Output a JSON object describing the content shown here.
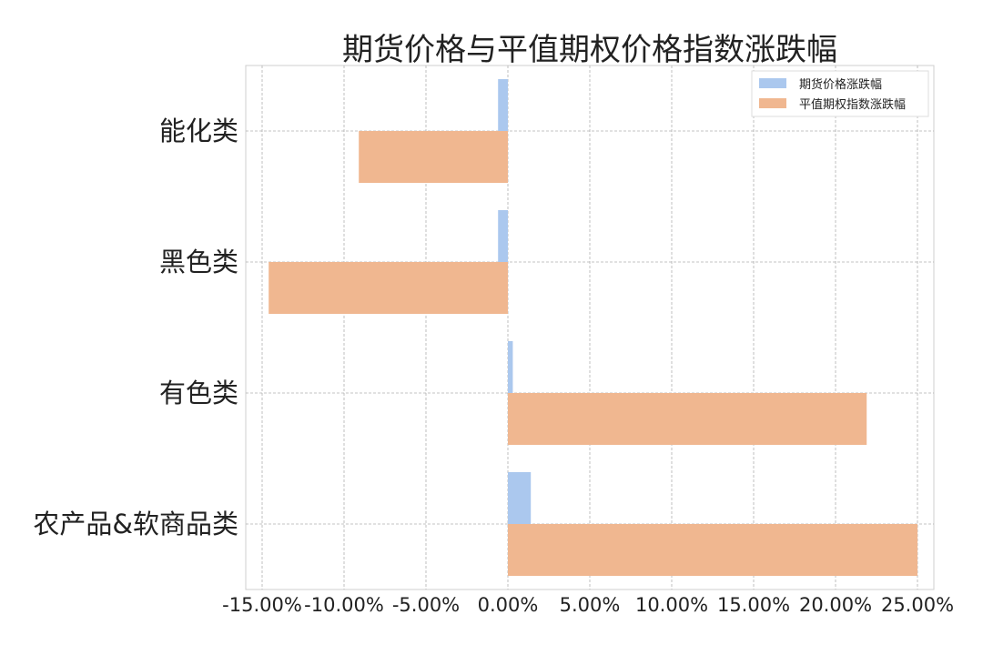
{
  "chart_data": {
    "type": "bar",
    "orientation": "horizontal",
    "title": "期货价格与平值期权价格指数涨跌幅",
    "categories": [
      "能化类",
      "黑色类",
      "有色类",
      "农产品&软商品类"
    ],
    "series": [
      {
        "name": "期货价格涨跌幅",
        "color": "#abc8ee",
        "values": [
          -0.6,
          -0.6,
          0.3,
          1.4
        ]
      },
      {
        "name": "平值期权指数涨跌幅",
        "color": "#f0b790",
        "values": [
          -9.1,
          -14.6,
          21.9,
          25.0
        ]
      }
    ],
    "xlim": [
      -16.0,
      26.0
    ],
    "x_ticks": [
      -15,
      -10,
      -5,
      0,
      5,
      10,
      15,
      20,
      25
    ],
    "x_tick_labels": [
      "-15.00%",
      "-10.00%",
      "-5.00%",
      "0.00%",
      "5.00%",
      "10.00%",
      "15.00%",
      "20.00%",
      "25.00%"
    ],
    "xlabel": "",
    "ylabel": "",
    "grid": true,
    "legend_position": "top-right"
  }
}
